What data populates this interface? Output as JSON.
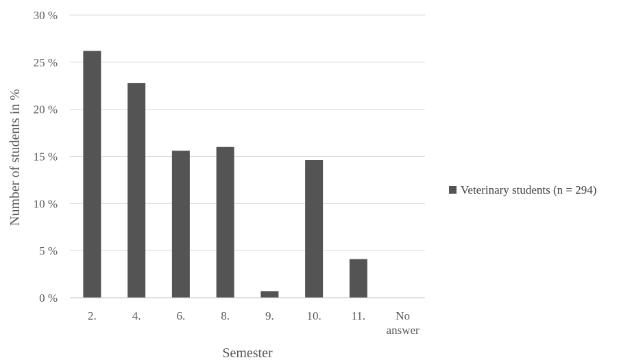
{
  "chart_data": {
    "type": "bar",
    "title": "",
    "xlabel": "Semester",
    "ylabel": "Number of students in %",
    "categories": [
      "2.",
      "4.",
      "6.",
      "8.",
      "9.",
      "10.",
      "11.",
      "No answer"
    ],
    "series": [
      {
        "name": "Veterinary students (n = 294)",
        "values": [
          26.2,
          22.8,
          15.6,
          16.0,
          0.7,
          14.6,
          4.1,
          0
        ]
      }
    ],
    "ylim": [
      0,
      30
    ],
    "yticks": [
      0,
      5,
      10,
      15,
      20,
      25,
      30
    ],
    "ytick_labels": [
      "0 %",
      "5 %",
      "10 %",
      "15 %",
      "20 %",
      "25 %",
      "30 %"
    ],
    "grid": true,
    "legend": "right",
    "colors": {
      "bar": "#545454",
      "grid": "#d9d9d9",
      "axis": "#bfbfbf"
    }
  }
}
